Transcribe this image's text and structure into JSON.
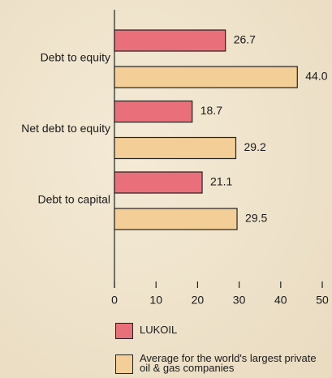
{
  "chart_data": {
    "type": "bar",
    "orientation": "horizontal",
    "categories": [
      "Debt to equity",
      "Net debt to equity",
      "Debt to capital"
    ],
    "series": [
      {
        "name": "LUKOIL",
        "color": "#e9707b",
        "values": [
          26.7,
          18.7,
          21.1
        ],
        "value_labels": [
          "26.7",
          "18.7",
          "21.1"
        ]
      },
      {
        "name": "Average for the world's largest private oil & gas companies",
        "color": "#f3cf97",
        "values": [
          44.0,
          29.2,
          29.5
        ],
        "value_labels": [
          "44.0",
          "29.2",
          "29.5"
        ]
      }
    ],
    "xlim": [
      0,
      50
    ],
    "xticks": [
      0,
      10,
      20,
      30,
      40,
      50
    ]
  }
}
